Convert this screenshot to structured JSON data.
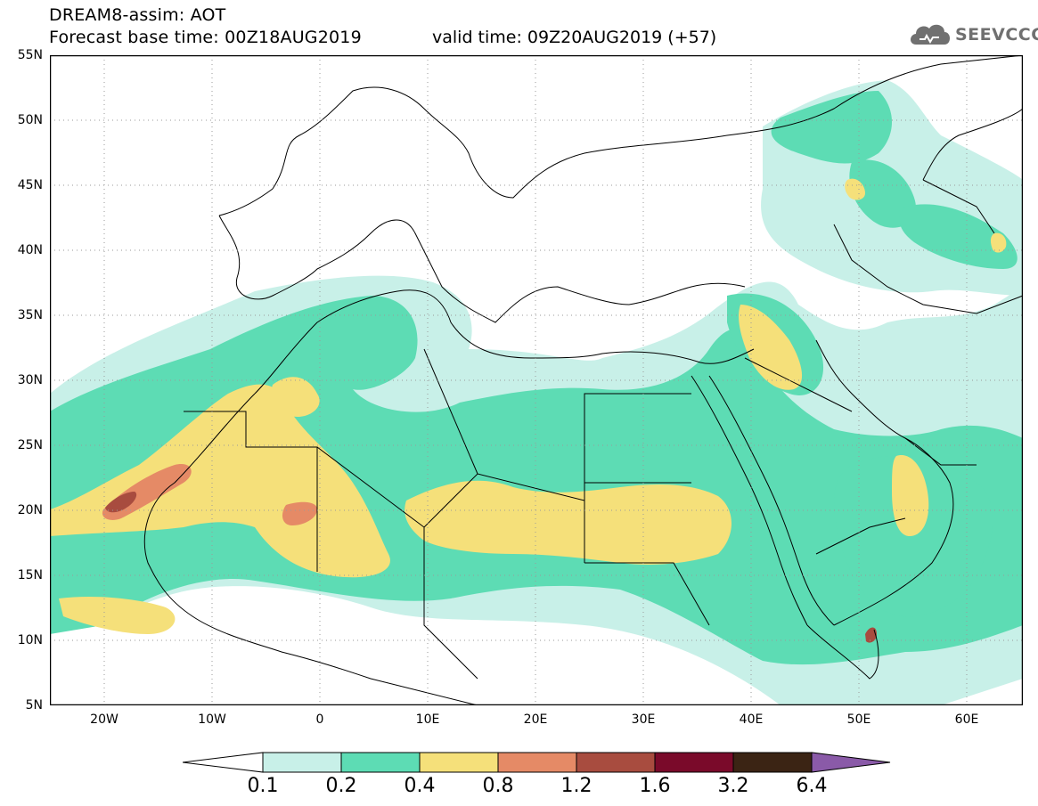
{
  "header": {
    "title": "DREAM8-assim: AOT",
    "base_time": "Forecast base time: 00Z18AUG2019",
    "valid_time": "valid time: 09Z20AUG2019 (+57)"
  },
  "logo": {
    "text": "SEEVCCC",
    "icon": "cloud-icon"
  },
  "map": {
    "lat_labels": [
      "55N",
      "50N",
      "45N",
      "40N",
      "35N",
      "30N",
      "25N",
      "20N",
      "15N",
      "10N",
      "5N"
    ],
    "lon_labels": [
      "20W",
      "10W",
      "0",
      "10E",
      "20E",
      "30E",
      "40E",
      "50E",
      "60E"
    ],
    "colors": {
      "c1": "#c8f0e8",
      "c2": "#5ddcb4",
      "c3": "#f5e07a",
      "c4": "#e58a66",
      "c5": "#a84c3f",
      "c6": "#7a0a2a",
      "c7": "#3b2414",
      "c8": "#8a5aa8"
    }
  },
  "colorbar": {
    "labels": [
      "0.1",
      "0.2",
      "0.4",
      "0.8",
      "1.2",
      "1.6",
      "3.2",
      "6.4"
    ],
    "colors": [
      "#c8f0e8",
      "#5ddcb4",
      "#f5e07a",
      "#e58a66",
      "#a84c3f",
      "#7a0a2a",
      "#3b2414"
    ],
    "under_color": "#ffffff",
    "over_color": "#8a5aa8"
  }
}
